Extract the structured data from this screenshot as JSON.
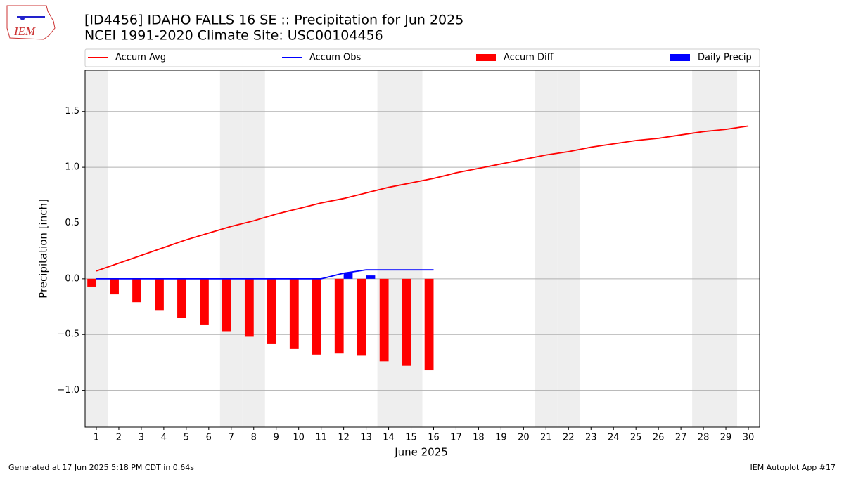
{
  "logo_text": "IEM",
  "chart_data": {
    "type": "combo",
    "title": "[ID4456] IDAHO FALLS 16 SE :: Precipitation for Jun 2025",
    "subtitle": "NCEI 1991-2020 Climate Site: USC00104456",
    "x_label": "June 2025",
    "y_label": "Precipitation [inch]",
    "x": [
      1,
      2,
      3,
      4,
      5,
      6,
      7,
      8,
      9,
      10,
      11,
      12,
      13,
      14,
      15,
      16,
      17,
      18,
      19,
      20,
      21,
      22,
      23,
      24,
      25,
      26,
      27,
      28,
      29,
      30
    ],
    "xlim": [
      0.5,
      30.5
    ],
    "xticks": [
      1,
      2,
      3,
      4,
      5,
      6,
      7,
      8,
      9,
      10,
      11,
      12,
      13,
      14,
      15,
      16,
      17,
      18,
      19,
      20,
      21,
      22,
      23,
      24,
      25,
      26,
      27,
      28,
      29,
      30
    ],
    "ylim": [
      -1.33,
      1.87
    ],
    "yticks": [
      {
        "value": -1.0,
        "label": "−1.0"
      },
      {
        "value": -0.5,
        "label": "−0.5"
      },
      {
        "value": 0.0,
        "label": "0.0"
      },
      {
        "value": 0.5,
        "label": "0.5"
      },
      {
        "value": 1.0,
        "label": "1.0"
      },
      {
        "value": 1.5,
        "label": "1.5"
      }
    ],
    "grid": true,
    "shaded_days": [
      1,
      7,
      8,
      14,
      15,
      21,
      22,
      28,
      29
    ],
    "series": [
      {
        "name": "Accum Avg",
        "type": "line",
        "color": "#ff0000",
        "values": [
          0.07,
          0.14,
          0.21,
          0.28,
          0.35,
          0.41,
          0.47,
          0.52,
          0.58,
          0.63,
          0.68,
          0.72,
          0.77,
          0.82,
          0.86,
          0.9,
          0.95,
          0.99,
          1.03,
          1.07,
          1.11,
          1.14,
          1.18,
          1.21,
          1.24,
          1.26,
          1.29,
          1.32,
          1.34,
          1.37
        ]
      },
      {
        "name": "Accum Obs",
        "type": "line",
        "color": "#0000ff",
        "values": [
          0,
          0,
          0,
          0,
          0,
          0,
          0,
          0,
          0,
          0,
          0,
          0.05,
          0.08,
          0.08,
          0.08,
          0.08,
          null,
          null,
          null,
          null,
          null,
          null,
          null,
          null,
          null,
          null,
          null,
          null,
          null,
          null
        ]
      },
      {
        "name": "Accum Diff",
        "type": "bar",
        "color": "#ff0000",
        "values": [
          -0.07,
          -0.14,
          -0.21,
          -0.28,
          -0.35,
          -0.41,
          -0.47,
          -0.52,
          -0.58,
          -0.63,
          -0.68,
          -0.67,
          -0.69,
          -0.74,
          -0.78,
          -0.82,
          null,
          null,
          null,
          null,
          null,
          null,
          null,
          null,
          null,
          null,
          null,
          null,
          null,
          null
        ]
      },
      {
        "name": "Daily Precip",
        "type": "bar",
        "color": "#0000ff",
        "values": [
          0,
          0,
          0,
          0,
          0,
          0,
          0,
          0,
          0,
          0,
          0,
          0.05,
          0.03,
          0,
          0,
          0,
          null,
          null,
          null,
          null,
          null,
          null,
          null,
          null,
          null,
          null,
          null,
          null,
          null,
          null
        ]
      }
    ]
  },
  "footer": {
    "left": "Generated at 17 Jun 2025 5:18 PM CDT in 0.64s",
    "right": "IEM Autoplot App #17"
  }
}
